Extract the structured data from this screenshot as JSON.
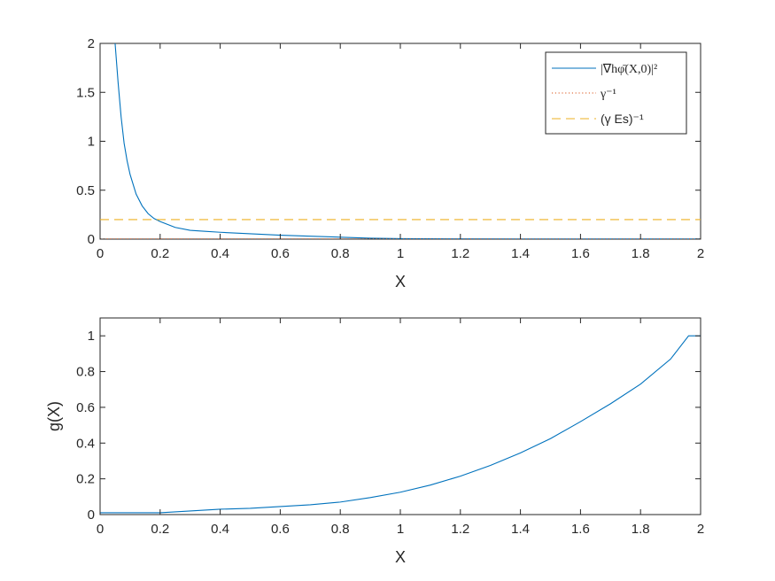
{
  "chart_data": [
    {
      "type": "line",
      "xlabel": "X",
      "ylabel": "",
      "xlim": [
        0,
        2
      ],
      "ylim": [
        0,
        2
      ],
      "xticks": [
        0,
        0.2,
        0.4,
        0.6,
        0.8,
        1,
        1.2,
        1.4,
        1.6,
        1.8,
        2
      ],
      "xtick_labels": [
        "0",
        "0.2",
        "0.4",
        "0.6",
        "0.8",
        "1",
        "1.2",
        "1.4",
        "1.6",
        "1.8",
        "2"
      ],
      "yticks": [
        0,
        0.5,
        1,
        1.5,
        2
      ],
      "ytick_labels": [
        "0",
        "0.5",
        "1",
        "1.5",
        "2"
      ],
      "grid": false,
      "legend_position": "top-right",
      "series": [
        {
          "name": "|∇hφ̄(X,0)|²",
          "color": "#0072BD",
          "style": "solid",
          "x": [
            0.05,
            0.06,
            0.07,
            0.08,
            0.09,
            0.1,
            0.12,
            0.14,
            0.16,
            0.18,
            0.2,
            0.25,
            0.3,
            0.35,
            0.4,
            0.5,
            0.6,
            0.7,
            0.8,
            0.9,
            1.0,
            1.2,
            1.4,
            1.6,
            1.8,
            2.0
          ],
          "y": [
            2.0,
            1.6,
            1.25,
            0.98,
            0.8,
            0.66,
            0.46,
            0.34,
            0.26,
            0.21,
            0.18,
            0.12,
            0.09,
            0.08,
            0.07,
            0.055,
            0.04,
            0.03,
            0.02,
            0.01,
            0.005,
            0.003,
            0.002,
            0.002,
            0.002,
            0.002
          ]
        },
        {
          "name": "γ⁻¹",
          "color": "#D95319",
          "style": "dotted",
          "x": [
            0,
            2
          ],
          "y": [
            0.002,
            0.002
          ]
        },
        {
          "name": "(γ Es)⁻¹",
          "color": "#EDB120",
          "style": "dashed",
          "x": [
            0,
            2
          ],
          "y": [
            0.2,
            0.2
          ]
        }
      ]
    },
    {
      "type": "line",
      "xlabel": "X",
      "ylabel": "g(X)",
      "xlim": [
        0,
        2
      ],
      "ylim": [
        0,
        1.1
      ],
      "xticks": [
        0,
        0.2,
        0.4,
        0.6,
        0.8,
        1,
        1.2,
        1.4,
        1.6,
        1.8,
        2
      ],
      "xtick_labels": [
        "0",
        "0.2",
        "0.4",
        "0.6",
        "0.8",
        "1",
        "1.2",
        "1.4",
        "1.6",
        "1.8",
        "2"
      ],
      "yticks": [
        0,
        0.2,
        0.4,
        0.6,
        0.8,
        1
      ],
      "ytick_labels": [
        "0",
        "0.2",
        "0.4",
        "0.6",
        "0.8",
        "1"
      ],
      "grid": false,
      "series": [
        {
          "color": "#0072BD",
          "style": "solid",
          "x": [
            0,
            0.1,
            0.2,
            0.3,
            0.4,
            0.5,
            0.6,
            0.7,
            0.8,
            0.9,
            1.0,
            1.1,
            1.2,
            1.3,
            1.4,
            1.5,
            1.6,
            1.7,
            1.8,
            1.9,
            1.96,
            2.0
          ],
          "y": [
            0.01,
            0.01,
            0.01,
            0.02,
            0.03,
            0.035,
            0.045,
            0.055,
            0.07,
            0.095,
            0.125,
            0.165,
            0.215,
            0.275,
            0.345,
            0.425,
            0.52,
            0.62,
            0.73,
            0.87,
            1.0,
            1.0
          ]
        }
      ]
    }
  ]
}
